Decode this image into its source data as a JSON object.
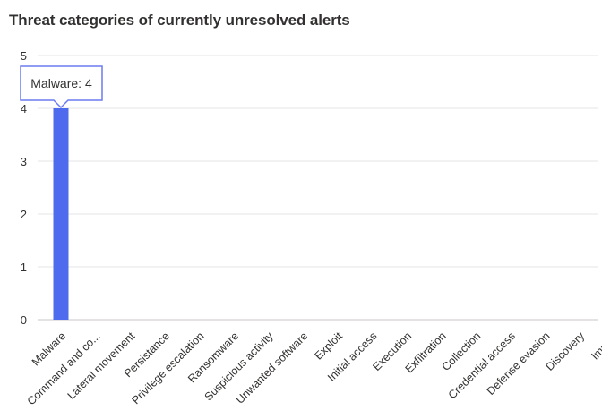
{
  "chart_data": {
    "type": "bar",
    "title": "Threat categories of currently unresolved alerts",
    "xlabel": "",
    "ylabel": "",
    "ylim": [
      0,
      5
    ],
    "yticks": [
      0,
      1,
      2,
      3,
      4,
      5
    ],
    "grid": true,
    "categories": [
      "Malware",
      "Command and co...",
      "Lateral movement",
      "Persistance",
      "Privilege escalation",
      "Ransomware",
      "Suspicious activity",
      "Unwanted software",
      "Exploit",
      "Initial access",
      "Execution",
      "Exfiltration",
      "Collection",
      "Credential access",
      "Defense evasion",
      "Discovery",
      "Impact"
    ],
    "values": [
      4,
      0,
      0,
      0,
      0,
      0,
      0,
      0,
      0,
      0,
      0,
      0,
      0,
      0,
      0,
      0,
      0
    ],
    "bar_color": "#4f6bed",
    "tooltip": {
      "text": "Malware: 4",
      "category": "Malware"
    }
  }
}
